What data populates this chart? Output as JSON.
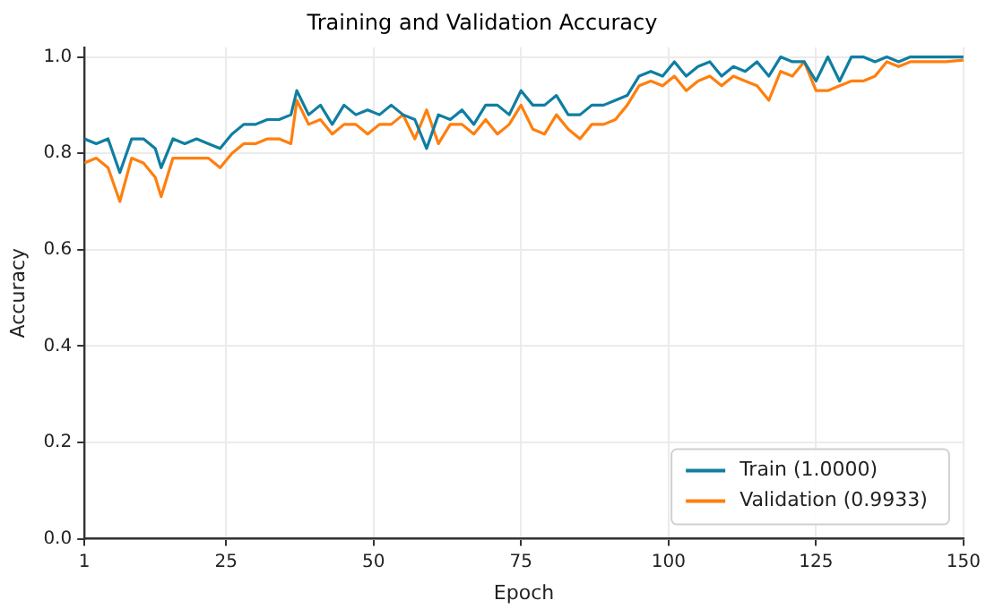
{
  "chart_data": {
    "type": "line",
    "title": "Training and Validation Accuracy",
    "xlabel": "Epoch",
    "ylabel": "Accuracy",
    "x": [
      1,
      3,
      5,
      7,
      9,
      11,
      13,
      14,
      16,
      18,
      20,
      22,
      24,
      26,
      28,
      30,
      32,
      34,
      36,
      37,
      39,
      41,
      43,
      45,
      47,
      49,
      51,
      53,
      55,
      57,
      59,
      61,
      63,
      65,
      67,
      69,
      71,
      73,
      75,
      77,
      79,
      81,
      83,
      85,
      87,
      89,
      91,
      93,
      95,
      97,
      99,
      101,
      103,
      105,
      107,
      109,
      111,
      113,
      115,
      117,
      119,
      121,
      123,
      125,
      127,
      129,
      131,
      133,
      135,
      137,
      139,
      141,
      143,
      145,
      147,
      150
    ],
    "series": [
      {
        "name": "Train (1.0000)",
        "color": "#0f7ea1",
        "values": [
          0.83,
          0.82,
          0.83,
          0.76,
          0.83,
          0.83,
          0.81,
          0.77,
          0.83,
          0.82,
          0.83,
          0.82,
          0.81,
          0.84,
          0.86,
          0.86,
          0.87,
          0.87,
          0.88,
          0.93,
          0.88,
          0.9,
          0.86,
          0.9,
          0.88,
          0.89,
          0.88,
          0.9,
          0.88,
          0.87,
          0.81,
          0.88,
          0.87,
          0.89,
          0.86,
          0.9,
          0.9,
          0.88,
          0.93,
          0.9,
          0.9,
          0.92,
          0.88,
          0.88,
          0.9,
          0.9,
          0.91,
          0.92,
          0.96,
          0.97,
          0.96,
          0.99,
          0.96,
          0.98,
          0.99,
          0.96,
          0.98,
          0.97,
          0.99,
          0.96,
          1.0,
          0.99,
          0.99,
          0.95,
          1.0,
          0.95,
          1.0,
          1.0,
          0.99,
          1.0,
          0.99,
          1.0,
          1.0,
          1.0,
          1.0,
          1.0
        ]
      },
      {
        "name": "Validation (0.9933)",
        "color": "#ff7f0e",
        "values": [
          0.78,
          0.79,
          0.77,
          0.7,
          0.79,
          0.78,
          0.75,
          0.71,
          0.79,
          0.79,
          0.79,
          0.79,
          0.77,
          0.8,
          0.82,
          0.82,
          0.83,
          0.83,
          0.82,
          0.91,
          0.86,
          0.87,
          0.84,
          0.86,
          0.86,
          0.84,
          0.86,
          0.86,
          0.88,
          0.83,
          0.89,
          0.82,
          0.86,
          0.86,
          0.84,
          0.87,
          0.84,
          0.86,
          0.9,
          0.85,
          0.84,
          0.88,
          0.85,
          0.83,
          0.86,
          0.86,
          0.87,
          0.9,
          0.94,
          0.95,
          0.94,
          0.96,
          0.93,
          0.95,
          0.96,
          0.94,
          0.96,
          0.95,
          0.94,
          0.91,
          0.97,
          0.96,
          0.99,
          0.93,
          0.93,
          0.94,
          0.95,
          0.95,
          0.96,
          0.99,
          0.98,
          0.99,
          0.99,
          0.99,
          0.99,
          0.9933
        ]
      }
    ],
    "xlim": [
      1,
      150
    ],
    "xticks": [
      1,
      25,
      50,
      75,
      100,
      125,
      150
    ],
    "ylim": [
      0,
      1.02
    ],
    "yticks": [
      {
        "value": 0,
        "label": "0.0"
      },
      {
        "value": 0.2,
        "label": "0.2"
      },
      {
        "value": 0.4,
        "label": "0.4"
      },
      {
        "value": 0.6,
        "label": "0.6"
      },
      {
        "value": 0.8,
        "label": "0.8"
      },
      {
        "value": 1,
        "label": "1.0"
      }
    ],
    "grid": true,
    "legend": "bottom right",
    "marker": "none",
    "line_style": "solid"
  }
}
